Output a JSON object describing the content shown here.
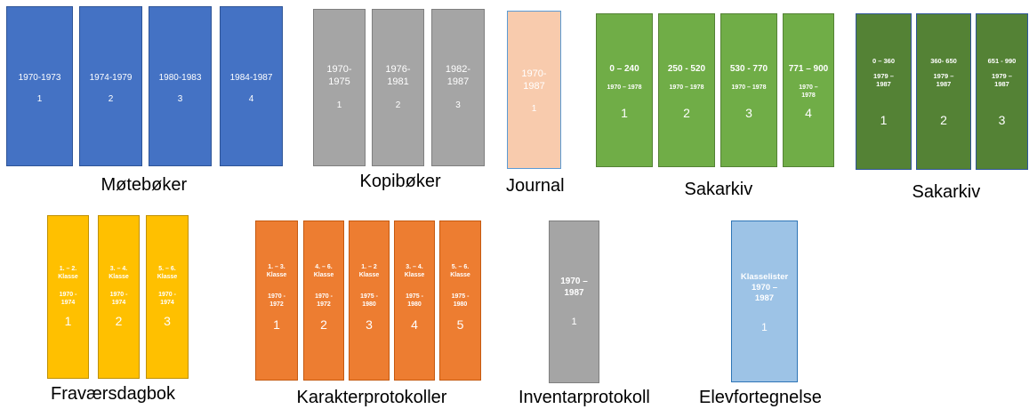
{
  "groups": [
    {
      "caption": "Møtebøker",
      "color": "#4472c4",
      "border": "#2f5597",
      "volumes": [
        {
          "text": "1970-1973",
          "number": "1"
        },
        {
          "text": "1974-1979",
          "number": "2"
        },
        {
          "text": "1980-1983",
          "number": "3"
        },
        {
          "text": "1984-1987",
          "number": "4"
        }
      ]
    },
    {
      "caption": "Kopibøker",
      "color": "#a5a5a5",
      "border": "#7f7f7f",
      "volumes": [
        {
          "text": "1970-\n1975",
          "number": "1"
        },
        {
          "text": "1976-\n1981",
          "number": "2"
        },
        {
          "text": "1982-\n1987",
          "number": "3"
        }
      ]
    },
    {
      "caption": "Journal",
      "color": "#f8cbad",
      "border": "#5b9bd5",
      "volumes": [
        {
          "text": "1970-\n1987",
          "number": "1"
        }
      ]
    },
    {
      "caption": "Sakarkiv",
      "color": "#70ad47",
      "border": "#548235",
      "volumes": [
        {
          "text": "0 – 240",
          "sub": "1970 – 1978",
          "number": "1"
        },
        {
          "text": "250 - 520",
          "sub": "1970 – 1978",
          "number": "2"
        },
        {
          "text": "530 - 770",
          "sub": "1970 – 1978",
          "number": "3"
        },
        {
          "text": "771 – 900",
          "sub": "1970 –\n1978",
          "number": "4"
        }
      ]
    },
    {
      "caption": "Sakarkiv",
      "color": "#548235",
      "border": "#2f5597",
      "volumes": [
        {
          "text": "0 – 360",
          "sub": "1979 –\n1987",
          "number": "1"
        },
        {
          "text": "360- 650",
          "sub": "1979 –\n1987",
          "number": "2"
        },
        {
          "text": "651 - 990",
          "sub": "1979 –\n1987",
          "number": "3"
        }
      ]
    },
    {
      "caption": "Fraværsdagbok",
      "color": "#ffc000",
      "border": "#bf9000",
      "volumes": [
        {
          "text": "1. – 2.\nKlasse",
          "sub": "1970 -\n1974",
          "number": "1"
        },
        {
          "text": "3. – 4.\nKlasse",
          "sub": "1970 -\n1974",
          "number": "2"
        },
        {
          "text": "5. – 6.\nKlasse",
          "sub": "1970 -\n1974",
          "number": "3"
        }
      ]
    },
    {
      "caption": "Karakterprotokoller",
      "color": "#ed7d31",
      "border": "#c55a11",
      "volumes": [
        {
          "text": "1. – 3.\nKlasse",
          "sub": "1970 -\n1972",
          "number": "1"
        },
        {
          "text": "4. – 6.\nKlasse",
          "sub": "1970 -\n1972",
          "number": "2"
        },
        {
          "text": "1. – 2\nKlasse",
          "sub": "1975 -\n1980",
          "number": "3"
        },
        {
          "text": "3. – 4.\nKlasse",
          "sub": "1975 -\n1980",
          "number": "4"
        },
        {
          "text": "5. – 6.\nKlasse",
          "sub": "1975 -\n1980",
          "number": "5"
        }
      ]
    },
    {
      "caption": "Inventarprotokoll",
      "color": "#a5a5a5",
      "border": "#7f7f7f",
      "volumes": [
        {
          "text": "1970 –\n1987",
          "number": "1"
        }
      ]
    },
    {
      "caption": "Elevfortegnelse",
      "color": "#9dc3e6",
      "border": "#2e75b6",
      "volumes": [
        {
          "text": "Klasselister\n1970 –\n1987",
          "number": "1"
        }
      ]
    }
  ]
}
